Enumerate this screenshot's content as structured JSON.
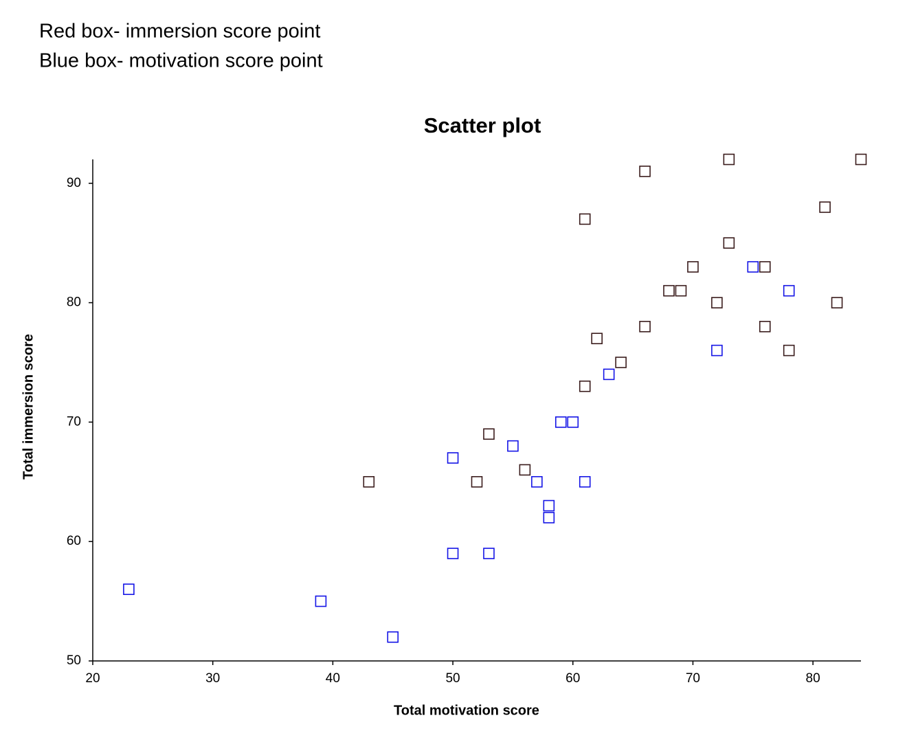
{
  "chart_data": {
    "type": "scatter",
    "title": "Scatter plot",
    "annotations": [
      "Red box- immersion score point",
      "Blue box- motivation score point"
    ],
    "x_label": "Total motivation score",
    "y_label": "Total immersion score",
    "xlim": [
      20,
      84
    ],
    "ylim": [
      50,
      92
    ],
    "xticks": [
      20,
      30,
      40,
      50,
      60,
      70,
      80
    ],
    "yticks": [
      50,
      60,
      70,
      80,
      90
    ],
    "marker": "square",
    "series": [
      {
        "color": "#3a1c1c",
        "x": [
          43,
          52,
          53,
          56,
          61,
          61,
          62,
          64,
          66,
          66,
          68,
          69,
          70,
          72,
          73,
          73,
          76,
          76,
          78,
          81,
          82,
          84
        ],
        "values": [
          65,
          65,
          69,
          66,
          73,
          87,
          77,
          75,
          91,
          78,
          81,
          81,
          83,
          80,
          92,
          85,
          83,
          78,
          76,
          88,
          80,
          92
        ]
      },
      {
        "color": "#1414e6",
        "x": [
          23,
          39,
          45,
          50,
          50,
          53,
          55,
          57,
          58,
          58,
          59,
          60,
          61,
          63,
          72,
          75,
          78
        ],
        "values": [
          56,
          55,
          52,
          67,
          59,
          59,
          68,
          65,
          63,
          62,
          70,
          70,
          65,
          74,
          76,
          83,
          81
        ]
      }
    ]
  }
}
